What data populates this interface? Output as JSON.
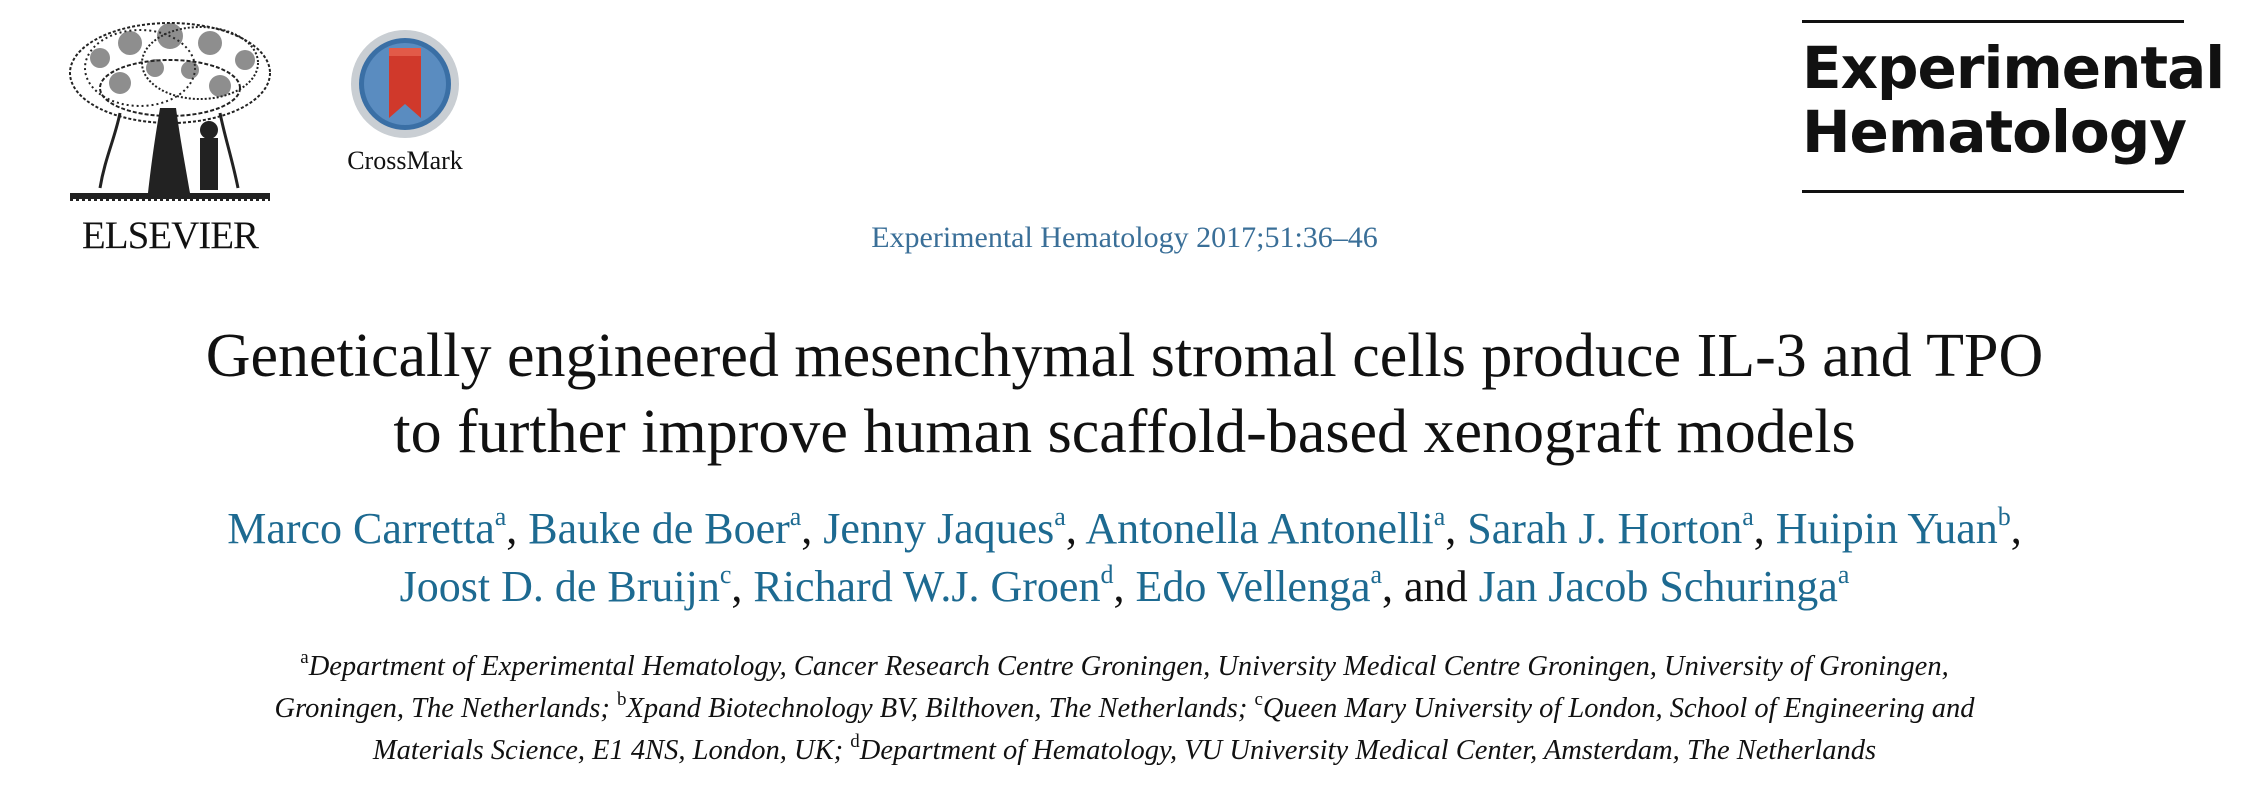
{
  "publisher": {
    "name": "ELSEVIER"
  },
  "crossmark": {
    "label": "CrossMark"
  },
  "journal_logo": {
    "line1": "Experimental",
    "line2": "Hematology"
  },
  "citation": "Experimental Hematology 2017;51:36–46",
  "title": {
    "line1": "Genetically engineered mesenchymal stromal cells produce IL-3 and TPO",
    "line2": "to further improve human scaffold-based xenograft models"
  },
  "authors": [
    {
      "name": "Marco Carretta",
      "aff": "a",
      "sep": ", "
    },
    {
      "name": "Bauke de Boer",
      "aff": "a",
      "sep": ", "
    },
    {
      "name": "Jenny Jaques",
      "aff": "a",
      "sep": ", "
    },
    {
      "name": "Antonella Antonelli",
      "aff": "a",
      "sep": ", "
    },
    {
      "name": "Sarah J. Horton",
      "aff": "a",
      "sep": ", "
    },
    {
      "name": "Huipin Yuan",
      "aff": "b",
      "sep": ","
    },
    {
      "name": "Joost D. de Bruijn",
      "aff": "c",
      "sep": ", "
    },
    {
      "name": "Richard W.J. Groen",
      "aff": "d",
      "sep": ", "
    },
    {
      "name": "Edo Vellenga",
      "aff": "a",
      "sep": ", and "
    },
    {
      "name": "Jan Jacob Schuringa",
      "aff": "a",
      "sep": ""
    }
  ],
  "affiliations": {
    "line1_mark": "a",
    "line1_text": "Department of Experimental Hematology, Cancer Research Centre Groningen, University Medical Centre Groningen, University of Groningen,",
    "line2_text_a": "Groningen, The Netherlands; ",
    "line2_mark_b": "b",
    "line2_text_b": "Xpand Biotechnology BV, Bilthoven, The Netherlands; ",
    "line2_mark_c": "c",
    "line2_text_c": "Queen Mary University of London, School of Engineering and",
    "line3_text_a": "Materials Science, E1 4NS, London, UK; ",
    "line3_mark_d": "d",
    "line3_text_d": "Department of Hematology, VU University Medical Center, Amsterdam, The Netherlands"
  }
}
